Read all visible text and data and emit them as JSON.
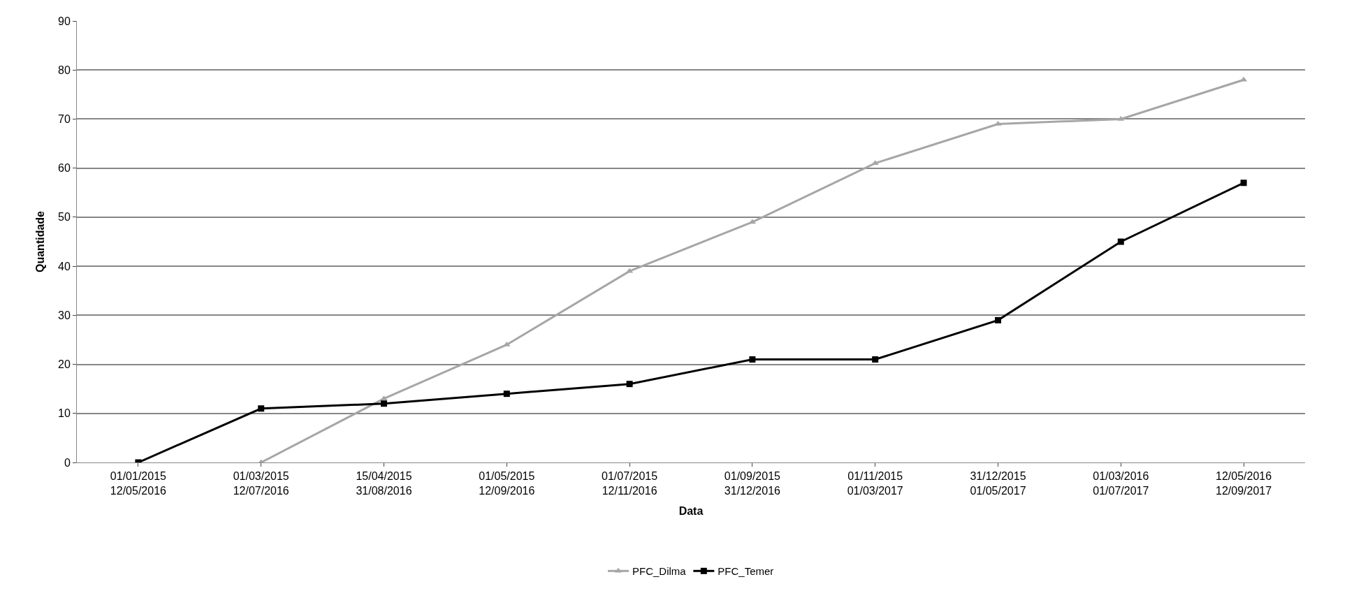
{
  "chart_data": {
    "type": "line",
    "xlabel": "Data",
    "ylabel": "Quantidade",
    "categories": [
      "01/01/2015\n12/05/2016",
      "01/03/2015\n12/07/2016",
      "15/04/2015\n31/08/2016",
      "01/05/2015\n12/09/2016",
      "01/07/2015\n12/11/2016",
      "01/09/2015\n31/12/2016",
      "01/11/2015\n01/03/2017",
      "31/12/2015\n01/05/2017",
      "01/03/2016\n01/07/2017",
      "12/05/2016\n12/09/2017"
    ],
    "series": [
      {
        "name": "PFC_Dilma",
        "color": "#a6a6a6",
        "marker": "triangle",
        "values": [
          null,
          0,
          13,
          24,
          39,
          49,
          61,
          69,
          70,
          78
        ]
      },
      {
        "name": "PFC_Temer",
        "color": "#000000",
        "marker": "square",
        "values": [
          0,
          11,
          12,
          14,
          16,
          21,
          21,
          29,
          45,
          57
        ]
      }
    ],
    "ylim": [
      0,
      90
    ],
    "yticks": [
      0,
      10,
      20,
      30,
      40,
      50,
      60,
      70,
      80,
      90
    ],
    "grid": "y",
    "legend": "bottom",
    "line_style": "solid"
  }
}
